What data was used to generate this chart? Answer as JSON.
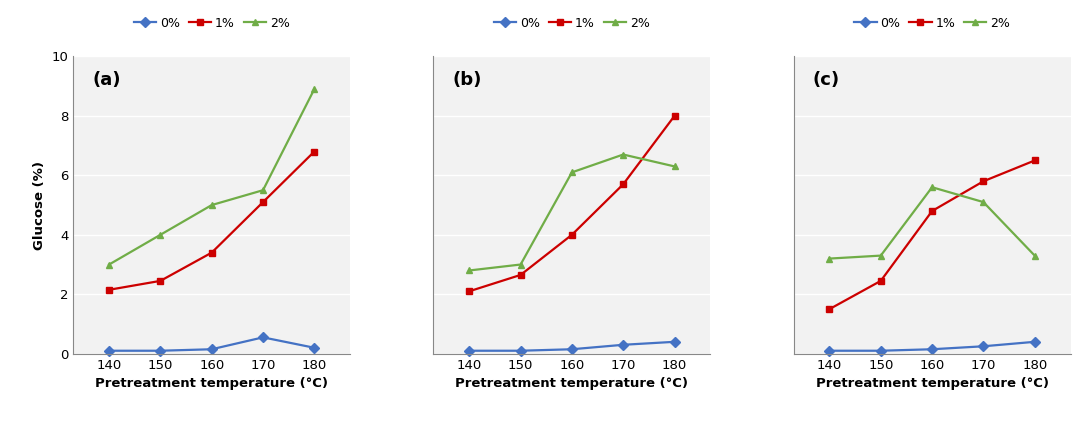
{
  "x": [
    140,
    150,
    160,
    170,
    180
  ],
  "panels": [
    {
      "label": "(a)",
      "series": {
        "0%": [
          0.1,
          0.1,
          0.15,
          0.55,
          0.2
        ],
        "1%": [
          2.15,
          2.45,
          3.4,
          5.1,
          6.8
        ],
        "2%": [
          3.0,
          4.0,
          5.0,
          5.5,
          8.9
        ]
      }
    },
    {
      "label": "(b)",
      "series": {
        "0%": [
          0.1,
          0.1,
          0.15,
          0.3,
          0.4
        ],
        "1%": [
          2.1,
          2.65,
          4.0,
          5.7,
          8.0
        ],
        "2%": [
          2.8,
          3.0,
          6.1,
          6.7,
          6.3
        ]
      }
    },
    {
      "label": "(c)",
      "series": {
        "0%": [
          0.1,
          0.1,
          0.15,
          0.25,
          0.4
        ],
        "1%": [
          1.5,
          2.45,
          4.8,
          5.8,
          6.5
        ],
        "2%": [
          3.2,
          3.3,
          5.6,
          5.1,
          3.3
        ]
      }
    }
  ],
  "colors": {
    "0%": "#4472C4",
    "1%": "#CC0000",
    "2%": "#70AD47"
  },
  "markers": {
    "0%": "D",
    "1%": "s",
    "2%": "^"
  },
  "ylabel": "Glucose (%)",
  "xlabel": "Pretreatment temperature (°C)",
  "ylim": [
    0,
    10
  ],
  "yticks": [
    0,
    2,
    4,
    6,
    8,
    10
  ],
  "legend_labels": [
    "0%",
    "1%",
    "2%"
  ],
  "markersize": 5,
  "linewidth": 1.6,
  "bg_color": "#F2F2F2"
}
